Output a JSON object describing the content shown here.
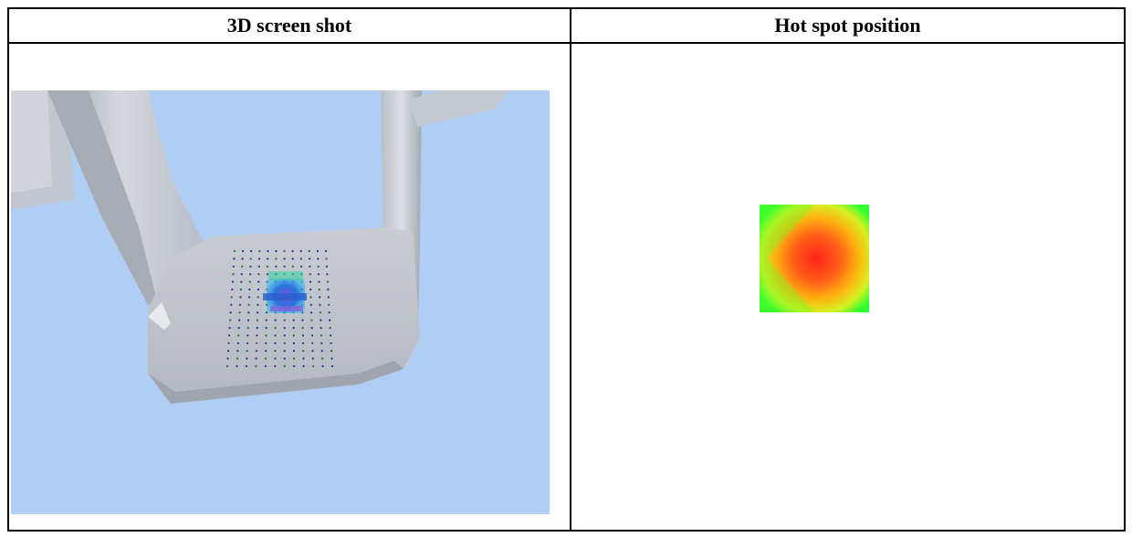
{
  "table": {
    "headers": {
      "left": "3D screen shot",
      "right": "Hot spot position"
    }
  },
  "screenshot": {
    "background_color": "#afcdf5",
    "model_color": "#c8ccd4",
    "probe_grid": {
      "columns": 12,
      "rows": 16
    }
  },
  "heatmap": {
    "center_color": "#ff2a1a",
    "mid_color": "#ff9a10",
    "edge_color": "#33ff33"
  }
}
